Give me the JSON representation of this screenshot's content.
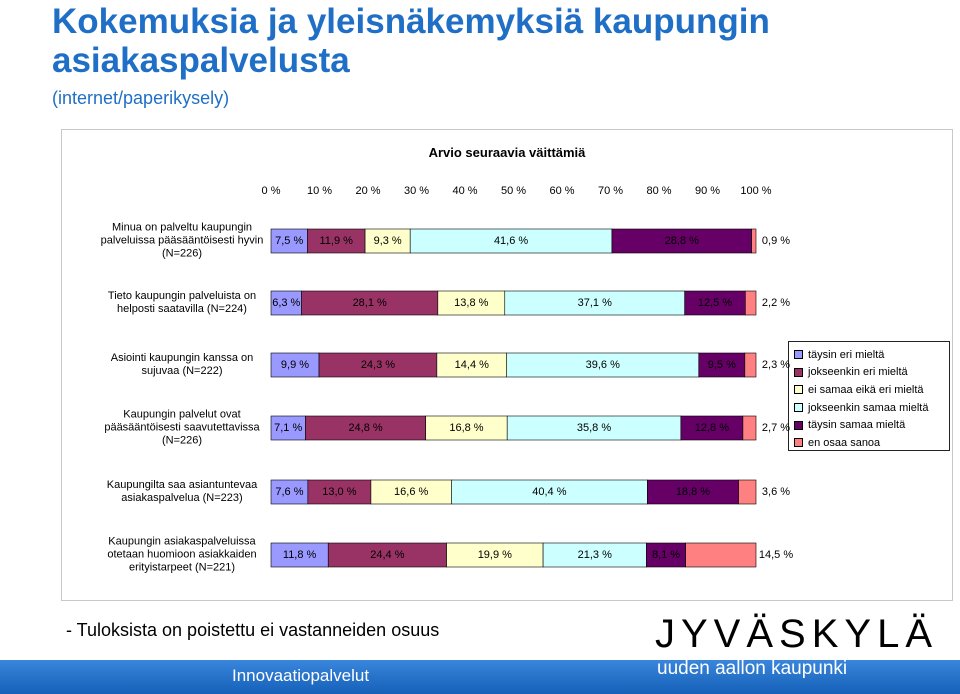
{
  "page": {
    "title": "Kokemuksia ja yleisnäkemyksiä kaupungin asiakaspalvelusta",
    "subtitle": "(internet/paperikysely)",
    "footnote": "- Tuloksista on poistettu ei vastanneiden osuus",
    "logo": "JYVÄSKYLÄ",
    "slogan": "uuden aallon kaupunki",
    "footer": "Innovaatiopalvelut"
  },
  "chart_data": {
    "type": "bar",
    "orientation": "horizontal",
    "stacked": true,
    "title": "Arvio seuraavia väittämiä",
    "xlim": [
      0,
      100
    ],
    "xticks": [
      "0 %",
      "10 %",
      "20 %",
      "30 %",
      "40 %",
      "50 %",
      "60 %",
      "70 %",
      "80 %",
      "90 %",
      "100 %"
    ],
    "categories": [
      "Minua on palveltu kaupungin palveluissa pääsääntöisesti hyvin (N=226)",
      "Tieto kaupungin palveluista on helposti saatavilla (N=224)",
      "Asiointi kaupungin kanssa on sujuvaa (N=222)",
      "Kaupungin palvelut ovat pääsääntöisesti saavutettavissa (N=226)",
      "Kaupungilta saa asiantuntevaa asiakaspalvelua (N=223)",
      "Kaupungin asiakaspalveluissa otetaan huomioon asiakkaiden erityistarpeet (N=221)"
    ],
    "category_lines": [
      [
        "Minua on palveltu kaupungin",
        "palveluissa pääsääntöisesti hyvin",
        "(N=226)"
      ],
      [
        "Tieto kaupungin palveluista on",
        "helposti saatavilla (N=224)"
      ],
      [
        "Asiointi kaupungin kanssa on",
        "sujuvaa (N=222)"
      ],
      [
        "Kaupungin palvelut ovat",
        "pääsääntöisesti saavutettavissa",
        "(N=226)"
      ],
      [
        "Kaupungilta saa asiantuntevaa",
        "asiakaspalvelua (N=223)"
      ],
      [
        "Kaupungin asiakaspalveluissa",
        "otetaan huomioon asiakkaiden",
        "erityistarpeet (N=221)"
      ]
    ],
    "series": [
      {
        "name": "täysin eri mieltä",
        "color": "#9999ff",
        "values": [
          7.5,
          6.3,
          9.9,
          7.1,
          7.6,
          11.8
        ],
        "labels": [
          "7,5 %",
          "6,3 %",
          "9,9 %",
          "7,1 %",
          "7,6 %",
          "11,8 %"
        ]
      },
      {
        "name": "jokseenkin eri mieltä",
        "color": "#993366",
        "values": [
          11.9,
          28.1,
          24.3,
          24.8,
          13.0,
          24.4
        ],
        "labels": [
          "11,9 %",
          "28,1 %",
          "24,3 %",
          "24,8 %",
          "13,0 %",
          "24,4 %"
        ]
      },
      {
        "name": "ei samaa eikä eri mieltä",
        "color": "#ffffcc",
        "values": [
          9.3,
          13.8,
          14.4,
          16.8,
          16.6,
          19.9
        ],
        "labels": [
          "9,3 %",
          "13,8 %",
          "14,4 %",
          "16,8 %",
          "16,6 %",
          "19,9 %"
        ]
      },
      {
        "name": "jokseenkin samaa mieltä",
        "color": "#ccffff",
        "values": [
          41.6,
          37.1,
          39.6,
          35.8,
          40.4,
          21.3
        ],
        "labels": [
          "41,6 %",
          "37,1 %",
          "39,6 %",
          "35,8 %",
          "40,4 %",
          "21,3 %"
        ]
      },
      {
        "name": "täysin samaa mieltä",
        "color": "#660066",
        "values": [
          28.8,
          12.5,
          9.5,
          12.8,
          18.8,
          8.1
        ],
        "labels": [
          "28,8 %",
          "12,5 %",
          "9,5 %",
          "12,8 %",
          "18,8 %",
          "8,1 %"
        ]
      },
      {
        "name": "en osaa sanoa",
        "color": "#ff8080",
        "values": [
          0.9,
          2.2,
          2.3,
          2.7,
          3.6,
          14.5
        ],
        "labels": [
          "0,9 %",
          "2,2 %",
          "2,3 %",
          "2,7 %",
          "3,6 %",
          "14,5 %"
        ]
      }
    ],
    "legend_position": "right",
    "grid": false
  }
}
